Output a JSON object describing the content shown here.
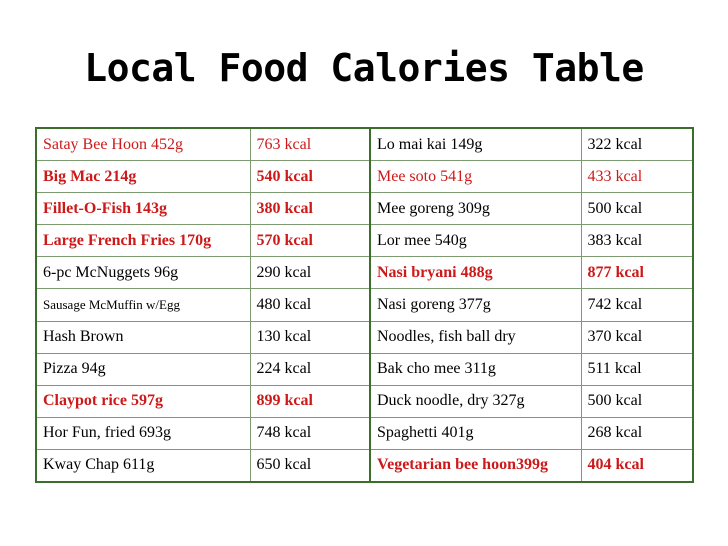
{
  "title": "Local Food Calories Table",
  "colors": {
    "highlight": "#cc1a1a",
    "border": "#3a6e2a"
  },
  "rows": [
    {
      "left": {
        "food": "Satay Bee Hoon 452g",
        "kcal": "763 kcal",
        "style": "red"
      },
      "right": {
        "food": "Lo mai kai 149g",
        "kcal": "322 kcal",
        "style": "normal"
      }
    },
    {
      "left": {
        "food": "Big Mac 214g",
        "kcal": "540 kcal",
        "style": "red-bold"
      },
      "right": {
        "food": "Mee soto 541g",
        "kcal": "433 kcal",
        "style": "red"
      }
    },
    {
      "left": {
        "food": "Fillet-O-Fish 143g",
        "kcal": "380 kcal",
        "style": "red-bold"
      },
      "right": {
        "food": "Mee goreng 309g",
        "kcal": "500 kcal",
        "style": "normal"
      }
    },
    {
      "left": {
        "food": "Large French Fries 170g",
        "kcal": "570 kcal",
        "style": "red-bold"
      },
      "right": {
        "food": "Lor mee 540g",
        "kcal": "383 kcal",
        "style": "normal"
      }
    },
    {
      "left": {
        "food": "6-pc McNuggets 96g",
        "kcal": "290 kcal",
        "style": "normal"
      },
      "right": {
        "food": "Nasi bryani 488g",
        "kcal": "877 kcal",
        "style": "red-bold"
      }
    },
    {
      "left": {
        "food": "Sausage McMuffin w/Egg",
        "kcal": "480 kcal",
        "style": "normal-small"
      },
      "right": {
        "food": "Nasi goreng 377g",
        "kcal": "742 kcal",
        "style": "normal"
      }
    },
    {
      "left": {
        "food": "Hash Brown",
        "kcal": "130 kcal",
        "style": "normal"
      },
      "right": {
        "food": "Noodles, fish ball dry",
        "kcal": "370 kcal",
        "style": "normal"
      }
    },
    {
      "left": {
        "food": "Pizza 94g",
        "kcal": "224 kcal",
        "style": "normal"
      },
      "right": {
        "food": "Bak cho mee 311g",
        "kcal": "511 kcal",
        "style": "normal"
      }
    },
    {
      "left": {
        "food": "Claypot rice 597g",
        "kcal": "899 kcal",
        "style": "red-bold"
      },
      "right": {
        "food": "Duck noodle, dry 327g",
        "kcal": "500 kcal",
        "style": "normal"
      }
    },
    {
      "left": {
        "food": "Hor Fun, fried 693g",
        "kcal": "748 kcal",
        "style": "normal"
      },
      "right": {
        "food": "Spaghetti 401g",
        "kcal": "268 kcal",
        "style": "normal"
      }
    },
    {
      "left": {
        "food": "Kway Chap 611g",
        "kcal": "650 kcal",
        "style": "normal"
      },
      "right": {
        "food": "Vegetarian bee hoon399g",
        "kcal": "404 kcal",
        "style": "red-bold"
      }
    }
  ]
}
